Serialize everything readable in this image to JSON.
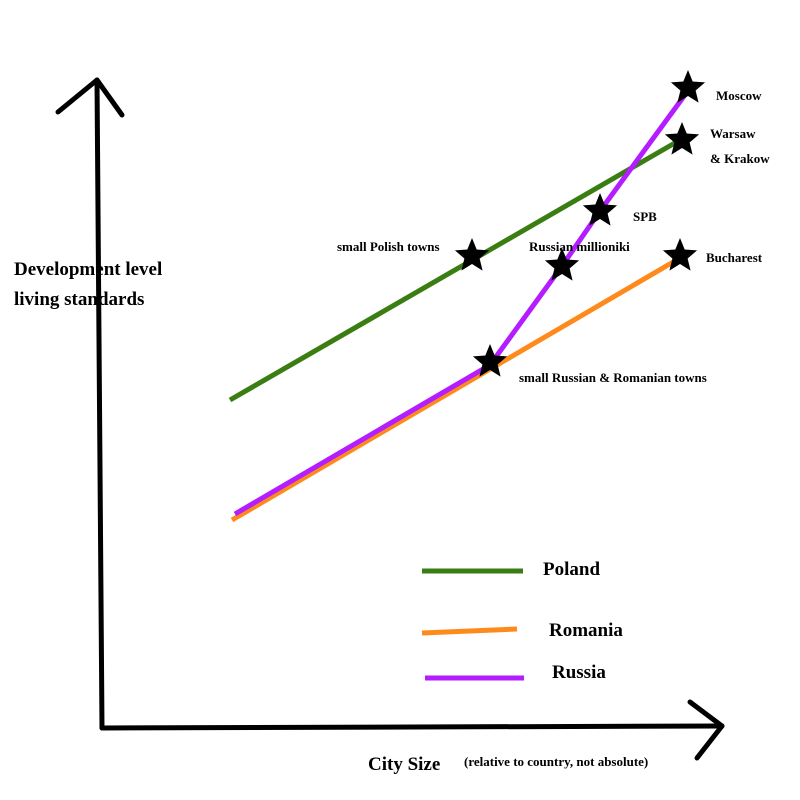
{
  "y_axis": {
    "label_lines": [
      "Development level",
      "living standards"
    ]
  },
  "x_axis": {
    "label": "City Size",
    "note": "(relative to country, not absolute)"
  },
  "legend": {
    "entries": [
      "Poland",
      "Romania",
      "Russia"
    ]
  },
  "points": {
    "labels": [
      "Moscow",
      "Warsaw",
      "& Krakow",
      "SPB",
      "small Polish towns",
      "Russian millioniki",
      "Bucharest",
      "small Russian & Romanian towns"
    ]
  }
}
